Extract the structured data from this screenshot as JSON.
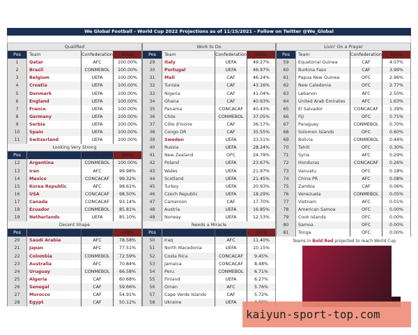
{
  "title": "We Global Football - World Cup 2022 Projections as of 11/15/2021 - Follow on Twitter @We_Global",
  "headers": {
    "pos": "Pos",
    "team": "Team",
    "conf": "Confederation",
    "odds": "Odds"
  },
  "colors": {
    "header_navy": "#1b2f52",
    "odds_header": "#7a1f22",
    "bold_red": "#a3263a"
  },
  "columns": [
    [
      {
        "section": "Qualified",
        "rows": [
          [
            1,
            "Qatar",
            "AFC",
            "100.00%",
            1
          ],
          [
            2,
            "Brazil",
            "CONMEBOL",
            "100.00%",
            1
          ],
          [
            3,
            "Belgium",
            "UEFA",
            "100.00%",
            1
          ],
          [
            4,
            "Croatia",
            "UEFA",
            "100.00%",
            1
          ],
          [
            5,
            "Denmark",
            "UEFA",
            "100.00%",
            1
          ],
          [
            6,
            "England",
            "UEFA",
            "100.00%",
            1
          ],
          [
            7,
            "France",
            "UEFA",
            "100.00%",
            1
          ],
          [
            8,
            "Germany",
            "UEFA",
            "100.00%",
            1
          ],
          [
            9,
            "Serbia",
            "UEFA",
            "100.00%",
            1
          ],
          [
            10,
            "Spain",
            "UEFA",
            "100.00%",
            1
          ],
          [
            11,
            "Switzerland",
            "UEFA",
            "100.00%",
            1
          ]
        ]
      },
      {
        "section": "Looking Very Strong",
        "rows": [
          [
            12,
            "Argentina",
            "CONMEBOL",
            "100.00%",
            1
          ],
          [
            13,
            "Iran",
            "AFC",
            "99.98%",
            1
          ],
          [
            14,
            "Mexico",
            "CONCACAF",
            "99.32%",
            1
          ],
          [
            15,
            "Korea Republic",
            "AFC",
            "98.61%",
            1
          ],
          [
            16,
            "USA",
            "CONCACAF",
            "98.50%",
            1
          ],
          [
            17,
            "Canada",
            "CONCACAF",
            "93.14%",
            1
          ],
          [
            18,
            "Ecuador",
            "CONMEBOL",
            "85.81%",
            1
          ],
          [
            19,
            "Netherlands",
            "UEFA",
            "85.10%",
            1
          ]
        ]
      },
      {
        "section": "Decent Shape",
        "rows": [
          [
            20,
            "Saudi Arabia",
            "AFC",
            "78.58%",
            1
          ],
          [
            21,
            "Japan",
            "AFC",
            "77.51%",
            1
          ],
          [
            22,
            "Colombia",
            "CONMEBOL",
            "72.59%",
            1
          ],
          [
            23,
            "Australia",
            "AFC",
            "70.84%",
            1
          ],
          [
            24,
            "Uruguay",
            "CONMEBOL",
            "66.58%",
            1
          ],
          [
            25,
            "Algeria",
            "CAF",
            "60.68%",
            1
          ],
          [
            26,
            "Senegal",
            "CAF",
            "59.66%",
            1
          ],
          [
            27,
            "Morocco",
            "CAF",
            "54.91%",
            1
          ],
          [
            28,
            "Egypt",
            "CAF",
            "50.12%",
            1
          ]
        ]
      }
    ],
    [
      {
        "section": "Work to Do",
        "rows": [
          [
            29,
            "Italy",
            "UEFA",
            "49.27%",
            1
          ],
          [
            30,
            "Portugal",
            "UEFA",
            "46.97%",
            1
          ],
          [
            31,
            "Mali",
            "CAF",
            "46.24%",
            1
          ],
          [
            32,
            "Tunisia",
            "CAF",
            "43.16%",
            0
          ],
          [
            33,
            "Nigeria",
            "CAF",
            "41.04%",
            0
          ],
          [
            34,
            "Ghana",
            "CAF",
            "40.93%",
            0
          ],
          [
            35,
            "Panama",
            "CONCACAF",
            "40.43%",
            0
          ],
          [
            36,
            "Chile",
            "CONMEBOL",
            "37.05%",
            0
          ],
          [
            37,
            "Côte d'Ivoire",
            "CAF",
            "36.17%",
            0
          ],
          [
            38,
            "Congo DR",
            "CAF",
            "35.55%",
            0
          ],
          [
            39,
            "Sweden",
            "UEFA",
            "33.51%",
            1
          ],
          [
            40,
            "Russia",
            "UEFA",
            "28.24%",
            0
          ],
          [
            41,
            "New Zealand",
            "OFC",
            "24.79%",
            0
          ],
          [
            42,
            "Poland",
            "UEFA",
            "23.67%",
            0
          ],
          [
            43,
            "Wales",
            "UEFA",
            "21.97%",
            0
          ],
          [
            44,
            "Scotland",
            "UEFA",
            "21.45%",
            0
          ],
          [
            45,
            "Turkey",
            "UEFA",
            "20.93%",
            0
          ],
          [
            46,
            "Czech Republic",
            "UEFA",
            "18.29%",
            0
          ],
          [
            47,
            "Cameroon",
            "CAF",
            "17.70%",
            0
          ],
          [
            48,
            "Austria",
            "UEFA",
            "16.85%",
            0
          ],
          [
            49,
            "Norway",
            "UEFA",
            "12.53%",
            0
          ]
        ]
      },
      {
        "section": "Needs a Miracle",
        "rows": [
          [
            50,
            "Iraq",
            "AFC",
            "11.40%",
            0
          ],
          [
            51,
            "North Macedonia",
            "UEFA",
            "10.15%",
            0
          ],
          [
            52,
            "Costa Rica",
            "CONCACAF",
            "9.45%",
            0
          ],
          [
            53,
            "Jamaica",
            "CONCACAF",
            "8.48%",
            0
          ],
          [
            54,
            "Peru",
            "CONMEBOL",
            "6.71%",
            0
          ],
          [
            55,
            "Finland",
            "UEFA",
            "6.27%",
            0
          ],
          [
            56,
            "Oman",
            "AFC",
            "5.76%",
            0
          ],
          [
            57,
            "Cape Verde Islands",
            "CAF",
            "5.72%",
            0
          ],
          [
            58,
            "Ukraine",
            "UEFA",
            "4.80%",
            0
          ]
        ]
      }
    ],
    [
      {
        "section": "Livin' On a Prayer",
        "rows": [
          [
            59,
            "Equatorial Guinea",
            "CAF",
            "4.07%",
            0
          ],
          [
            60,
            "Burkina Faso",
            "CAF",
            "3.99%",
            0
          ],
          [
            61,
            "Papua New Guinea",
            "OFC",
            "2.96%",
            0
          ],
          [
            62,
            "New Caledonia",
            "OFC",
            "2.77%",
            0
          ],
          [
            63,
            "Lebanon",
            "AFC",
            "2.50%",
            0
          ],
          [
            64,
            "United Arab Emirates",
            "AFC",
            "1.63%",
            0
          ],
          [
            65,
            "El Salvador",
            "CONCACAF",
            "1.39%",
            0
          ],
          [
            66,
            "Fiji",
            "OFC",
            "0.75%",
            0
          ],
          [
            67,
            "Paraguay",
            "CONMEBOL",
            "0.70%",
            0
          ],
          [
            68,
            "Solomon Islands",
            "OFC",
            "0.60%",
            0
          ],
          [
            69,
            "Bolivia",
            "CONMEBOL",
            "0.44%",
            0
          ],
          [
            70,
            "Tahiti",
            "OFC",
            "0.30%",
            0
          ],
          [
            71,
            "Syria",
            "AFC",
            "0.29%",
            0
          ],
          [
            72,
            "Honduras",
            "CONCACAF",
            "0.26%",
            0
          ],
          [
            73,
            "Vanuatu",
            "OFC",
            "0.18%",
            0
          ],
          [
            74,
            "China PR",
            "AFC",
            "0.08%",
            0
          ],
          [
            75,
            "Zambia",
            "CAF",
            "0.06%",
            0
          ],
          [
            76,
            "Venezuela",
            "CONMEBOL",
            "0.05%",
            0
          ],
          [
            77,
            "Vietnam",
            "AFC",
            "0.01%",
            0
          ],
          [
            78,
            "American Samoa",
            "OFC",
            "0.00%",
            0
          ],
          [
            79,
            "Cook Islands",
            "OFC",
            "0.00%",
            0
          ],
          [
            80,
            "Samoa",
            "OFC",
            "0.00%",
            0
          ],
          [
            81,
            "Tonga",
            "OFC",
            "0.00%",
            0
          ]
        ]
      }
    ]
  ],
  "note": {
    "pre": "Teams in ",
    "bold": "Bold Red",
    "post": " projected to reach World Cup"
  },
  "watermark": "kaiyun-sport-top.com"
}
